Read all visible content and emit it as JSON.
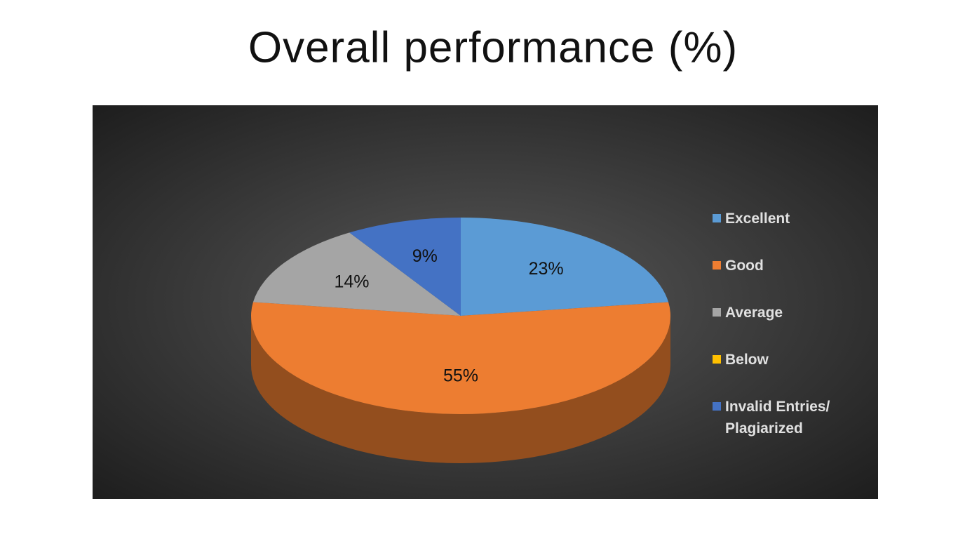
{
  "chart_data": {
    "type": "pie3d",
    "title": "Overall performance (%)",
    "categories": [
      "Excellent",
      "Good",
      "Average",
      "Below",
      "Invalid Entries/ Plagiarized"
    ],
    "values": [
      23,
      55,
      14,
      0,
      9
    ],
    "value_labels": [
      "23%",
      "55%",
      "14%",
      null,
      "9%"
    ],
    "colors": [
      "#5b9bd5",
      "#ed7d31",
      "#a5a5a5",
      "#ffc000",
      "#4472c4"
    ],
    "legend": "right"
  }
}
